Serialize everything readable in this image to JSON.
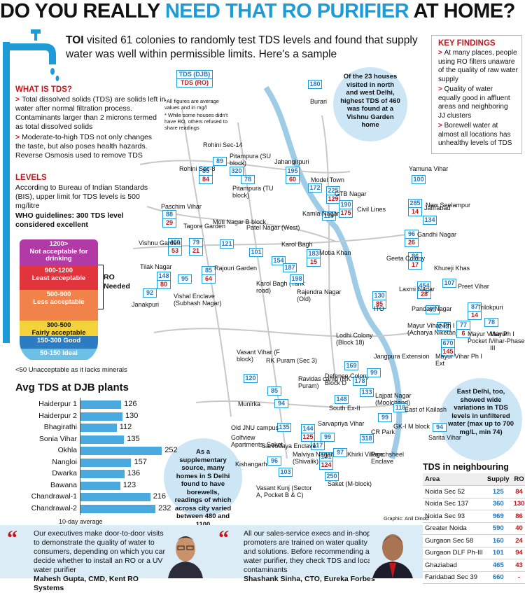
{
  "header": {
    "part1": "DO YOU REALLY ",
    "part2": "NEED THAT RO PURIFIER",
    "part3": " AT HOME?"
  },
  "intro": {
    "bold": "TOI",
    "text": " visited 61 colonies to randomly test TDS levels and found that supply water was well within permissible limits. Here's a sample"
  },
  "what_is_tds": {
    "title": "WHAT IS TDS?",
    "p1": "Total dissolved solids (TDS) are solids left in water after normal filtration process. Contaminants larger than 2 microns termed as total dissolved solids",
    "p2": "Moderate-to-high TDS not only changes the taste, but also poses health hazards. Reverse Osmosis used to remove TDS"
  },
  "levels": {
    "title": "LEVELS",
    "p1": "According to Bureau of Indian Standards (BIS), upper limit for TDS levels is 500 mg/litre",
    "p2": "WHO guidelines: 300 TDS level considered excellent",
    "bands": [
      {
        "range": "1200>",
        "desc": "Not acceptable for drinking",
        "color": "#b23aa6"
      },
      {
        "range": "900-1200",
        "desc": "Least acceptable",
        "color": "#e2343c"
      },
      {
        "range": "500-900",
        "desc": "Less acceptable",
        "color": "#f0824a"
      },
      {
        "range": "300-500",
        "desc": "Fairly acceptable",
        "color": "#f4d23c"
      },
      {
        "range": "150-300 Good",
        "desc": "",
        "color": "#2c7cc4"
      },
      {
        "range": "50-150 Ideal",
        "desc": "",
        "color": "#6cc0e8"
      }
    ],
    "ro_needed": "RO Needed",
    "note": "<50 Unacceptable as it lacks minerals"
  },
  "key_findings": {
    "title": "KEY FINDINGS",
    "items": [
      "At many places, people using RO filters unaware of the quality of raw water supply",
      "Quality of water equally good in affluent areas and neighboring JJ clusters",
      "Borewell water at almost all locations has unhealthy levels of TDS"
    ]
  },
  "legend": {
    "djb": "TDS (DJB)",
    "ro": "TDS (RO)",
    "note1": "*All figures are average values and in mg/l",
    "note2": "* While some houses didn't have RO, others refused to share readings"
  },
  "callouts": {
    "north": "Of the 23 houses visited in north and west Delhi, highest TDS of 460 was found at a Vishnu Garden home",
    "south": "As a supplementary source, many homes in S Delhi found to have borewells, readings of which across city varied between 480 and 1100",
    "east": "East Delhi, too, showed wide variations in TDS levels in unfiltered water (max up to 700 mg/L, min 74)"
  },
  "map": {
    "points": [
      {
        "name": "Burari",
        "djb": "180",
        "ro": ""
      },
      {
        "name": "Rohini Sec-14",
        "djb": "89",
        "ro": ""
      },
      {
        "name": "Pitampura (SU block)",
        "djb": "320",
        "ro": ""
      },
      {
        "name": "Jahangirpuri",
        "djb": "195",
        "ro": "60"
      },
      {
        "name": "Rohini Sec-8",
        "djb": "85",
        "ro": "84"
      },
      {
        "name": "Pitampura (TU block)",
        "djb": "78",
        "ro": ""
      },
      {
        "name": "Model Town",
        "djb": "172",
        "ro": ""
      },
      {
        "name": "GTB Nagar",
        "djb": "225",
        "ro": "129"
      },
      {
        "name": "Civil Lines",
        "djb": "190",
        "ro": "175"
      },
      {
        "name": "Kamla Nagar",
        "djb": "119",
        "ro": ""
      },
      {
        "name": "Yamuna Vihar",
        "djb": "100",
        "ro": ""
      },
      {
        "name": "Jaffrabad",
        "djb": "285",
        "ro": "14"
      },
      {
        "name": "New Seelampur",
        "djb": "134",
        "ro": ""
      },
      {
        "name": "Gandhi Nagar",
        "djb": "96",
        "ro": "26"
      },
      {
        "name": "Paschim Vihar",
        "djb": "88",
        "ro": "29"
      },
      {
        "name": "Tagore Garden",
        "djb": "79",
        "ro": "21"
      },
      {
        "name": "Vishnu Garden",
        "djb": "460",
        "ro": "53"
      },
      {
        "name": "Moti Nagar B block",
        "djb": "121",
        "ro": ""
      },
      {
        "name": "Patel Nagar (West)",
        "djb": "101",
        "ro": ""
      },
      {
        "name": "Karol Bagh",
        "djb": "154",
        "ro": ""
      },
      {
        "name": "Karol Bagh (Tank road)",
        "djb": "187",
        "ro": ""
      },
      {
        "name": "Motia Khan",
        "djb": "183",
        "ro": "15"
      },
      {
        "name": "Geeta Colony",
        "djb": "86",
        "ro": "17"
      },
      {
        "name": "Khureji Khas",
        "djb": "",
        "ro": ""
      },
      {
        "name": "Tilak Nagar",
        "djb": "148",
        "ro": "80"
      },
      {
        "name": "Rajouri Garden",
        "djb": "85",
        "ro": "64"
      },
      {
        "name": "Vishal Enclave (Subhash Nagar)",
        "djb": "95",
        "ro": ""
      },
      {
        "name": "Janakpuri",
        "djb": "92",
        "ro": ""
      },
      {
        "name": "Rajendra Nagar (Old)",
        "djb": "198",
        "ro": ""
      },
      {
        "name": "ITO",
        "djb": "130",
        "ro": "85"
      },
      {
        "name": "Laxmi Nagar",
        "djb": "454",
        "ro": "28"
      },
      {
        "name": "Preet Vihar",
        "djb": "107",
        "ro": ""
      },
      {
        "name": "Pandav Nagar",
        "djb": "95",
        "ro": ""
      },
      {
        "name": "Trilokpuri",
        "djb": "87",
        "ro": "14"
      },
      {
        "name": "Mayur Vihar-Ph I (Acharya Niketan)",
        "djb": "242",
        "ro": ""
      },
      {
        "name": "Mayur Vihar Ph I Pocket I",
        "djb": "77",
        "ro": "6"
      },
      {
        "name": "Mayur Vihar-Phase III",
        "djb": "78",
        "ro": ""
      },
      {
        "name": "Mayur Vihar Ph I Ext",
        "djb": "670",
        "ro": "145"
      },
      {
        "name": "Lodhi Colony (Block 18)",
        "djb": "169",
        "ro": ""
      },
      {
        "name": "Vasant Vihar (F block)",
        "djb": "120",
        "ro": ""
      },
      {
        "name": "RK Puram (Sec 3)",
        "djb": "85",
        "ro": ""
      },
      {
        "name": "Ravidas camp (RK Puram)",
        "djb": "94",
        "ro": ""
      },
      {
        "name": "Defence Colony Block D",
        "djb": "178",
        "ro": ""
      },
      {
        "name": "Jangpura Extension",
        "djb": "99",
        "ro": ""
      },
      {
        "name": "Lajpat Nagar (Moolchand)",
        "djb": "133",
        "ro": ""
      },
      {
        "name": "Munirka",
        "djb": "",
        "ro": ""
      },
      {
        "name": "South Ex-II",
        "djb": "148",
        "ro": ""
      },
      {
        "name": "East of Kailash",
        "djb": "118",
        "ro": ""
      },
      {
        "name": "GK-I M block",
        "djb": "99",
        "ro": ""
      },
      {
        "name": "Old JNU campus",
        "djb": "135",
        "ro": ""
      },
      {
        "name": "Golfview Apartments, Saket",
        "djb": "144",
        "ro": "125"
      },
      {
        "name": "Sarvapriya Vihar",
        "djb": "99",
        "ro": ""
      },
      {
        "name": "CR Park",
        "djb": "318",
        "ro": ""
      },
      {
        "name": "Sarita Vihar",
        "djb": "94",
        "ro": ""
      },
      {
        "name": "Sarvodaya Enclave",
        "djb": "117",
        "ro": ""
      },
      {
        "name": "Kishangarh",
        "djb": "96",
        "ro": ""
      },
      {
        "name": "Malviya Nagar (Shivalik)",
        "djb": "131",
        "ro": "124"
      },
      {
        "name": "Khirki Village",
        "djb": "97",
        "ro": ""
      },
      {
        "name": "Panchsheel Enclave",
        "djb": "",
        "ro": ""
      },
      {
        "name": "Saket (M-block)",
        "djb": "250",
        "ro": ""
      },
      {
        "name": "Vasant Kunj (Sector A, Pocket B & C)",
        "djb": "103",
        "ro": ""
      }
    ]
  },
  "djb_plants": {
    "title": "Avg TDS at DJB plants",
    "footnote": "10-day average",
    "items": [
      {
        "name": "Haiderpur 1",
        "value": 126
      },
      {
        "name": "Haiderpur 2",
        "value": 130
      },
      {
        "name": "Bhagirathi",
        "value": 112
      },
      {
        "name": "Sonia Vihar",
        "value": 135
      },
      {
        "name": "Okhla",
        "value": 252
      },
      {
        "name": "Nangloi",
        "value": 157
      },
      {
        "name": "Dwarka",
        "value": 136
      },
      {
        "name": "Bawana",
        "value": 123
      },
      {
        "name": "Chandrawal-1",
        "value": 216
      },
      {
        "name": "Chandrawal-2",
        "value": 232
      }
    ]
  },
  "neighbouring": {
    "title": "TDS in neighbouring areas",
    "cols": [
      "Area",
      "Supply",
      "RO"
    ],
    "rows": [
      [
        "Noida Sec 52",
        "125",
        "84"
      ],
      [
        "Noida Sec 137",
        "360",
        "130"
      ],
      [
        "Noida Sec 93",
        "969",
        "86"
      ],
      [
        "Greater Noida",
        "590",
        "40"
      ],
      [
        "Gurgaon Sec 58",
        "160",
        "24"
      ],
      [
        "Gurgaon DLF Ph-III",
        "101",
        "94"
      ],
      [
        "Ghaziabad",
        "465",
        "43"
      ],
      [
        "Faridabad Sec 39",
        "660",
        "-"
      ]
    ]
  },
  "quotes": [
    {
      "text": "Our executives make door-to-door visits to demonstrate the quality of water to consumers, depending on which you can decide whether to install an RO or a UV water purifier",
      "author": "Mahesh Gupta, CMD, Kent RO Systems"
    },
    {
      "text": "All our sales-service execs and in-shop promoters are trained on water quality and solutions. Before recommending a water purifier, they check TDS and local contaminants",
      "author": "Shashank Sinha, CTO, Eureka Forbes"
    }
  ],
  "credit": "Graphic: Anil Dinod"
}
